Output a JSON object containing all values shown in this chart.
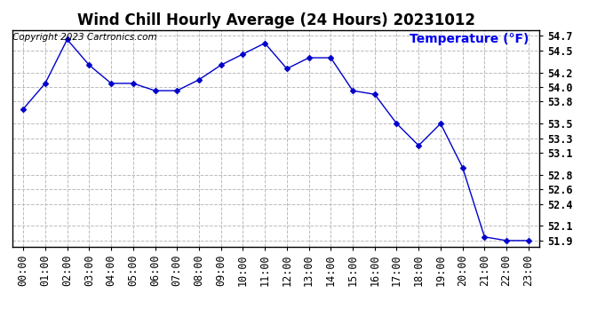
{
  "title": "Wind Chill Hourly Average (24 Hours) 20231012",
  "copyright_text": "Copyright 2023 Cartronics.com",
  "ylabel": "Temperature (°F)",
  "ylabel_color": "#0000ee",
  "hours": [
    "00:00",
    "01:00",
    "02:00",
    "03:00",
    "04:00",
    "05:00",
    "06:00",
    "07:00",
    "08:00",
    "09:00",
    "10:00",
    "11:00",
    "12:00",
    "13:00",
    "14:00",
    "15:00",
    "16:00",
    "17:00",
    "18:00",
    "19:00",
    "20:00",
    "21:00",
    "22:00",
    "23:00"
  ],
  "data_values": [
    53.7,
    54.05,
    54.65,
    54.3,
    54.05,
    54.05,
    53.95,
    53.95,
    54.1,
    54.3,
    54.45,
    54.6,
    54.25,
    54.4,
    54.4,
    53.95,
    53.9,
    53.5,
    53.2,
    53.5,
    52.9,
    51.95,
    51.9,
    51.9
  ],
  "ylim_min": 51.82,
  "ylim_max": 54.78,
  "yticks": [
    51.9,
    52.1,
    52.4,
    52.6,
    52.8,
    53.1,
    53.3,
    53.5,
    53.8,
    54.0,
    54.2,
    54.5,
    54.7
  ],
  "line_color": "#0000cc",
  "marker": "D",
  "marker_size": 3,
  "background_color": "#ffffff",
  "grid_color": "#bbbbbb",
  "title_fontsize": 12,
  "tick_fontsize": 8.5,
  "copyright_fontsize": 7.5,
  "ylabel_fontsize": 10,
  "border_color": "#000000"
}
